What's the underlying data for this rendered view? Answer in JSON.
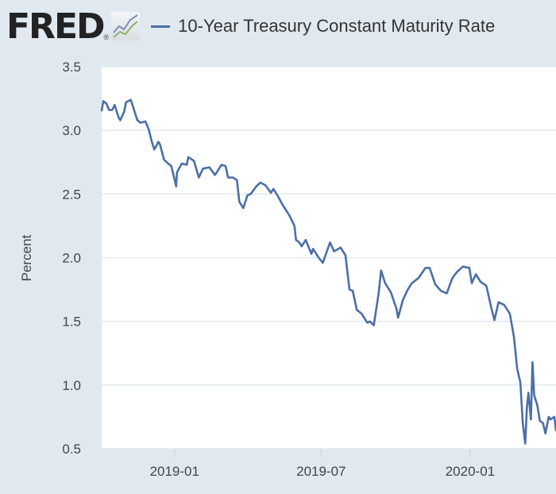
{
  "header": {
    "logo": "FRED",
    "logo_mark": "®"
  },
  "chart_data": {
    "type": "line",
    "title": "",
    "xlabel": "",
    "ylabel": "Percent",
    "ylim": [
      0.5,
      3.5
    ],
    "xlim": [
      "2018-10-03",
      "2020-04-16"
    ],
    "yticks": [
      "0.5",
      "1.0",
      "1.5",
      "2.0",
      "2.5",
      "3.0",
      "3.5"
    ],
    "xticks": [
      {
        "date": "2019-01-01",
        "label": "2019-01"
      },
      {
        "date": "2019-07-01",
        "label": "2019-07"
      },
      {
        "date": "2020-01-01",
        "label": "2020-01"
      }
    ],
    "grid": true,
    "legend_position": "top",
    "series": [
      {
        "name": "10-Year Treasury Constant Maturity Rate",
        "color": "#4a6fa5",
        "points": [
          [
            "2018-10-03",
            3.15
          ],
          [
            "2018-10-05",
            3.23
          ],
          [
            "2018-10-09",
            3.21
          ],
          [
            "2018-10-12",
            3.16
          ],
          [
            "2018-10-16",
            3.16
          ],
          [
            "2018-10-19",
            3.2
          ],
          [
            "2018-10-24",
            3.1
          ],
          [
            "2018-10-26",
            3.08
          ],
          [
            "2018-10-31",
            3.15
          ],
          [
            "2018-11-02",
            3.22
          ],
          [
            "2018-11-08",
            3.24
          ],
          [
            "2018-11-13",
            3.14
          ],
          [
            "2018-11-16",
            3.08
          ],
          [
            "2018-11-20",
            3.06
          ],
          [
            "2018-11-26",
            3.07
          ],
          [
            "2018-11-30",
            3.01
          ],
          [
            "2018-12-04",
            2.91
          ],
          [
            "2018-12-07",
            2.85
          ],
          [
            "2018-12-12",
            2.91
          ],
          [
            "2018-12-14",
            2.89
          ],
          [
            "2018-12-19",
            2.77
          ],
          [
            "2018-12-24",
            2.74
          ],
          [
            "2018-12-28",
            2.72
          ],
          [
            "2019-01-03",
            2.56
          ],
          [
            "2019-01-04",
            2.67
          ],
          [
            "2019-01-10",
            2.74
          ],
          [
            "2019-01-16",
            2.73
          ],
          [
            "2019-01-18",
            2.79
          ],
          [
            "2019-01-25",
            2.76
          ],
          [
            "2019-01-31",
            2.63
          ],
          [
            "2019-02-05",
            2.7
          ],
          [
            "2019-02-13",
            2.71
          ],
          [
            "2019-02-20",
            2.65
          ],
          [
            "2019-02-28",
            2.73
          ],
          [
            "2019-03-05",
            2.72
          ],
          [
            "2019-03-08",
            2.63
          ],
          [
            "2019-03-14",
            2.63
          ],
          [
            "2019-03-19",
            2.61
          ],
          [
            "2019-03-22",
            2.44
          ],
          [
            "2019-03-27",
            2.39
          ],
          [
            "2019-04-01",
            2.49
          ],
          [
            "2019-04-05",
            2.5
          ],
          [
            "2019-04-12",
            2.56
          ],
          [
            "2019-04-17",
            2.59
          ],
          [
            "2019-04-23",
            2.57
          ],
          [
            "2019-04-30",
            2.51
          ],
          [
            "2019-05-03",
            2.54
          ],
          [
            "2019-05-08",
            2.49
          ],
          [
            "2019-05-14",
            2.42
          ],
          [
            "2019-05-17",
            2.39
          ],
          [
            "2019-05-23",
            2.33
          ],
          [
            "2019-05-29",
            2.25
          ],
          [
            "2019-05-31",
            2.14
          ],
          [
            "2019-06-04",
            2.12
          ],
          [
            "2019-06-07",
            2.09
          ],
          [
            "2019-06-12",
            2.14
          ],
          [
            "2019-06-19",
            2.03
          ],
          [
            "2019-06-21",
            2.07
          ],
          [
            "2019-06-28",
            2.0
          ],
          [
            "2019-07-03",
            1.96
          ],
          [
            "2019-07-08",
            2.05
          ],
          [
            "2019-07-12",
            2.12
          ],
          [
            "2019-07-17",
            2.05
          ],
          [
            "2019-07-25",
            2.08
          ],
          [
            "2019-07-31",
            2.02
          ],
          [
            "2019-08-05",
            1.75
          ],
          [
            "2019-08-09",
            1.74
          ],
          [
            "2019-08-14",
            1.59
          ],
          [
            "2019-08-20",
            1.56
          ],
          [
            "2019-08-27",
            1.49
          ],
          [
            "2019-08-30",
            1.5
          ],
          [
            "2019-09-04",
            1.47
          ],
          [
            "2019-09-10",
            1.72
          ],
          [
            "2019-09-13",
            1.9
          ],
          [
            "2019-09-18",
            1.8
          ],
          [
            "2019-09-25",
            1.73
          ],
          [
            "2019-10-02",
            1.6
          ],
          [
            "2019-10-04",
            1.53
          ],
          [
            "2019-10-10",
            1.67
          ],
          [
            "2019-10-16",
            1.75
          ],
          [
            "2019-10-21",
            1.8
          ],
          [
            "2019-10-29",
            1.84
          ],
          [
            "2019-11-07",
            1.92
          ],
          [
            "2019-11-12",
            1.92
          ],
          [
            "2019-11-19",
            1.79
          ],
          [
            "2019-11-26",
            1.74
          ],
          [
            "2019-12-03",
            1.72
          ],
          [
            "2019-12-10",
            1.84
          ],
          [
            "2019-12-16",
            1.89
          ],
          [
            "2019-12-23",
            1.93
          ],
          [
            "2019-12-31",
            1.92
          ],
          [
            "2020-01-03",
            1.8
          ],
          [
            "2020-01-08",
            1.87
          ],
          [
            "2020-01-14",
            1.81
          ],
          [
            "2020-01-21",
            1.78
          ],
          [
            "2020-01-27",
            1.61
          ],
          [
            "2020-01-31",
            1.51
          ],
          [
            "2020-02-05",
            1.65
          ],
          [
            "2020-02-12",
            1.63
          ],
          [
            "2020-02-19",
            1.56
          ],
          [
            "2020-02-24",
            1.38
          ],
          [
            "2020-02-28",
            1.13
          ],
          [
            "2020-03-03",
            1.02
          ],
          [
            "2020-03-06",
            0.7
          ],
          [
            "2020-03-09",
            0.54
          ],
          [
            "2020-03-11",
            0.82
          ],
          [
            "2020-03-13",
            0.94
          ],
          [
            "2020-03-16",
            0.73
          ],
          [
            "2020-03-18",
            1.18
          ],
          [
            "2020-03-20",
            0.92
          ],
          [
            "2020-03-24",
            0.84
          ],
          [
            "2020-03-27",
            0.72
          ],
          [
            "2020-03-31",
            0.7
          ],
          [
            "2020-04-03",
            0.62
          ],
          [
            "2020-04-07",
            0.75
          ],
          [
            "2020-04-09",
            0.73
          ],
          [
            "2020-04-14",
            0.75
          ],
          [
            "2020-04-16",
            0.64
          ]
        ]
      }
    ]
  }
}
